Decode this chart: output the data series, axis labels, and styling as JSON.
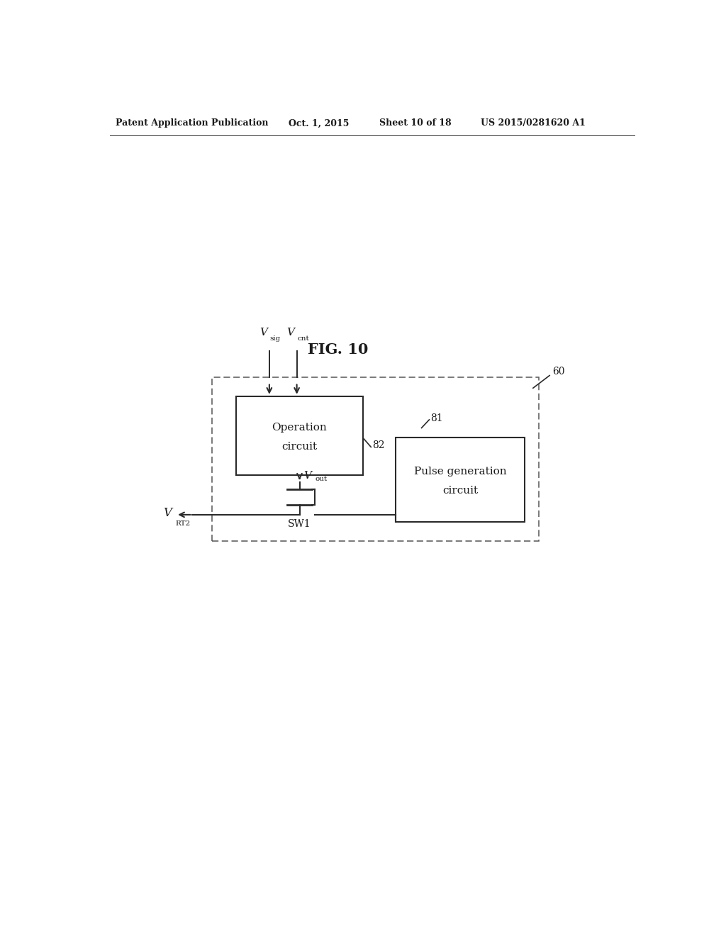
{
  "page_width": 10.24,
  "page_height": 13.2,
  "bg_color": "#ffffff",
  "header_text1": "Patent Application Publication",
  "header_text2": "Oct. 1, 2015",
  "header_text3": "Sheet 10 of 18",
  "header_text4": "US 2015/0281620 A1",
  "fig_title": "FIG. 10",
  "label_60": "60",
  "label_81": "81",
  "label_82": "82",
  "op_circuit_text": [
    "Operation",
    "circuit"
  ],
  "pulse_gen_text": [
    "Pulse generation",
    "circuit"
  ],
  "sw1_label": "SW1",
  "v_sig_label": "V",
  "v_sig_sub": "sig",
  "v_cnt_label": "V",
  "v_cnt_sub": "cnt",
  "v_out_label": "V",
  "v_out_sub": "out",
  "v_rt2_label": "V",
  "v_rt2_sub": "RT2",
  "line_color": "#2a2a2a",
  "box_color": "#2a2a2a",
  "dashed_box_color": "#555555",
  "text_color": "#1a1a1a"
}
